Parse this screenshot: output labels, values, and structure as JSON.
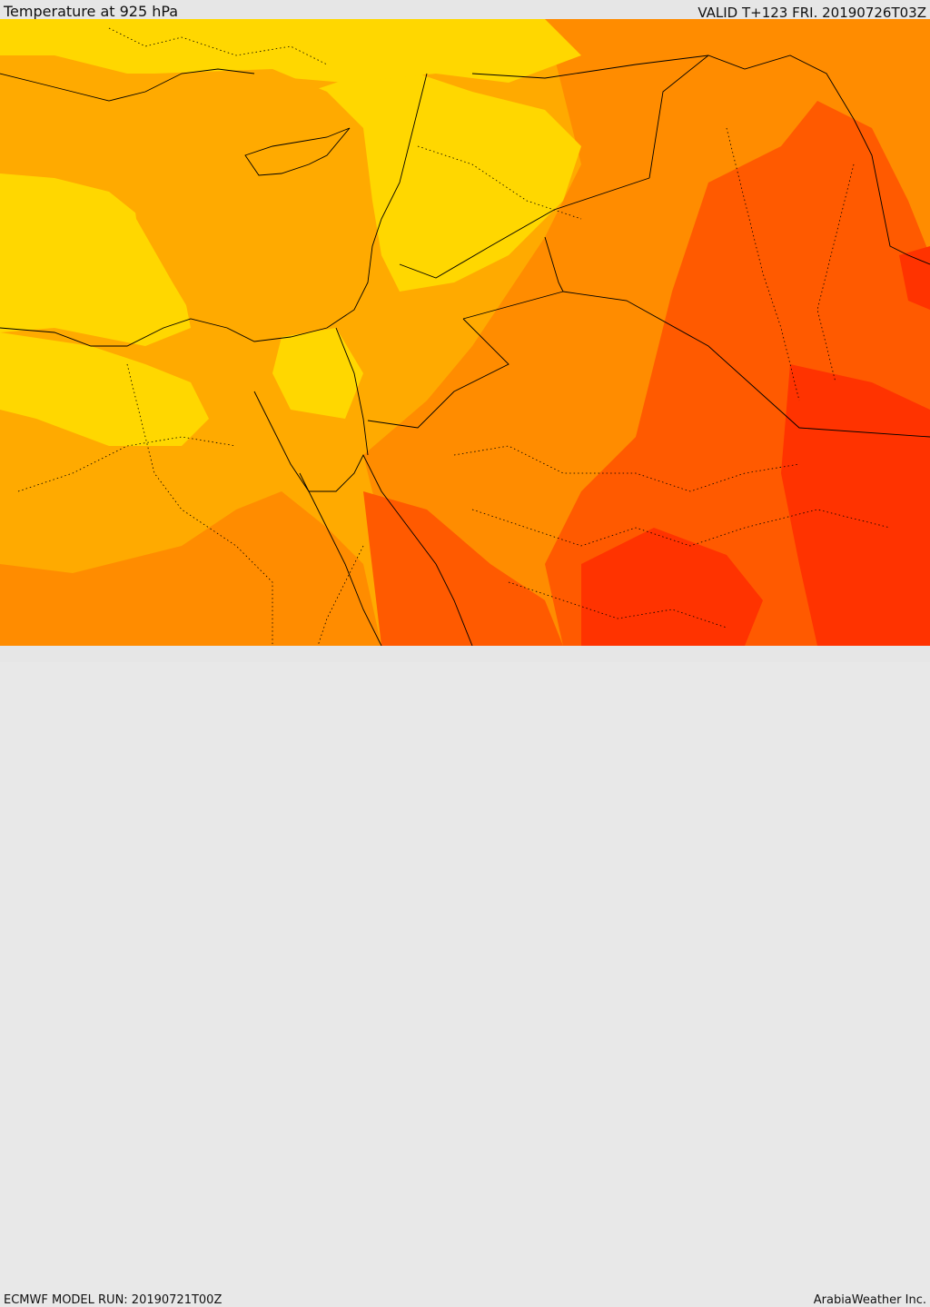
{
  "header": {
    "title": "Temperature at 925 hPa",
    "valid": "VALID T+123 FRI. 20190726T03Z"
  },
  "footer": {
    "model_run": "ECMWF MODEL RUN: 20190721T00Z",
    "credit": "ArabiaWeather Inc."
  },
  "palette": {
    "yellow": "#ffd700",
    "light_orange": "#ffaa00",
    "orange": "#ff8c00",
    "dark_orange": "#ff5a00",
    "red_orange": "#ff3300",
    "land_border": "#000000"
  }
}
